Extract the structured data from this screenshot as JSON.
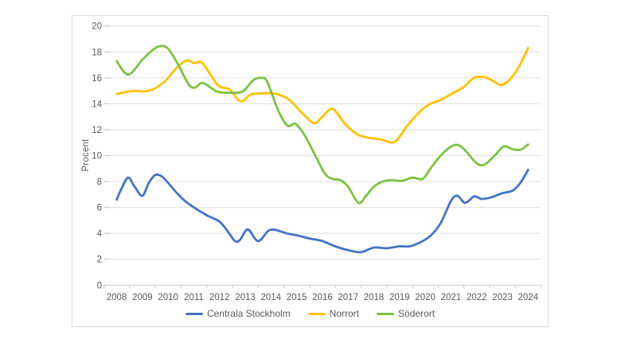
{
  "chart": {
    "ylabel": "Procent",
    "legend": [
      {
        "label": "Centrala Stockholm",
        "color": "#4472c4"
      },
      {
        "label": "Norrort",
        "color": "#ffc000"
      },
      {
        "label": "Söderort",
        "color": "#7cc143"
      }
    ]
  },
  "chart_data": {
    "type": "line",
    "title": "",
    "xlabel": "",
    "ylabel": "Procent",
    "x_tick_labels": [
      "2008",
      "2009",
      "2010",
      "2011",
      "2012",
      "2013",
      "2014",
      "2015",
      "2016",
      "2017",
      "2018",
      "2019",
      "2020",
      "2021",
      "2022",
      "2023",
      "2024"
    ],
    "x_range": [
      2008,
      2024
    ],
    "ylim": [
      0,
      20
    ],
    "y_tick_step": 2,
    "grid": true,
    "legend_position": "bottom",
    "colors": {
      "gridline": "#e3e3e3",
      "axis_line": "#d4d4d4",
      "tick_mark": "#c9c9c9",
      "tick_text": "#595959"
    },
    "series": [
      {
        "name": "Centrala Stockholm",
        "color": "#4472c4",
        "points": [
          [
            2008.0,
            6.6
          ],
          [
            2008.2,
            7.5
          ],
          [
            2008.45,
            8.3
          ],
          [
            2008.7,
            7.6
          ],
          [
            2009.0,
            6.9
          ],
          [
            2009.25,
            7.9
          ],
          [
            2009.5,
            8.5
          ],
          [
            2009.75,
            8.4
          ],
          [
            2010.0,
            7.9
          ],
          [
            2010.3,
            7.2
          ],
          [
            2010.6,
            6.6
          ],
          [
            2011.0,
            6.0
          ],
          [
            2011.5,
            5.4
          ],
          [
            2012.0,
            4.9
          ],
          [
            2012.3,
            4.2
          ],
          [
            2012.6,
            3.4
          ],
          [
            2012.8,
            3.5
          ],
          [
            2013.1,
            4.3
          ],
          [
            2013.5,
            3.4
          ],
          [
            2013.9,
            4.2
          ],
          [
            2014.2,
            4.25
          ],
          [
            2014.6,
            4.0
          ],
          [
            2015.0,
            3.85
          ],
          [
            2015.5,
            3.6
          ],
          [
            2016.0,
            3.4
          ],
          [
            2016.5,
            3.0
          ],
          [
            2017.0,
            2.7
          ],
          [
            2017.5,
            2.55
          ],
          [
            2018.0,
            2.9
          ],
          [
            2018.5,
            2.85
          ],
          [
            2019.0,
            3.0
          ],
          [
            2019.4,
            3.0
          ],
          [
            2019.8,
            3.3
          ],
          [
            2020.2,
            3.8
          ],
          [
            2020.6,
            4.8
          ],
          [
            2021.0,
            6.5
          ],
          [
            2021.25,
            6.9
          ],
          [
            2021.55,
            6.35
          ],
          [
            2021.9,
            6.85
          ],
          [
            2022.2,
            6.65
          ],
          [
            2022.6,
            6.8
          ],
          [
            2023.0,
            7.1
          ],
          [
            2023.4,
            7.3
          ],
          [
            2023.7,
            7.9
          ],
          [
            2024.0,
            8.9
          ]
        ]
      },
      {
        "name": "Norrort",
        "color": "#ffc000",
        "points": [
          [
            2008.0,
            14.75
          ],
          [
            2008.35,
            14.9
          ],
          [
            2008.7,
            15.0
          ],
          [
            2009.0,
            14.95
          ],
          [
            2009.4,
            15.1
          ],
          [
            2009.8,
            15.6
          ],
          [
            2010.0,
            16.0
          ],
          [
            2010.4,
            16.9
          ],
          [
            2010.75,
            17.35
          ],
          [
            2011.0,
            17.15
          ],
          [
            2011.3,
            17.2
          ],
          [
            2011.6,
            16.4
          ],
          [
            2011.9,
            15.5
          ],
          [
            2012.1,
            15.25
          ],
          [
            2012.4,
            15.1
          ],
          [
            2012.7,
            14.35
          ],
          [
            2012.9,
            14.2
          ],
          [
            2013.2,
            14.7
          ],
          [
            2013.6,
            14.8
          ],
          [
            2014.1,
            14.8
          ],
          [
            2014.5,
            14.55
          ],
          [
            2014.8,
            14.15
          ],
          [
            2015.3,
            13.1
          ],
          [
            2015.7,
            12.5
          ],
          [
            2016.0,
            13.0
          ],
          [
            2016.4,
            13.6
          ],
          [
            2016.9,
            12.4
          ],
          [
            2017.4,
            11.6
          ],
          [
            2017.9,
            11.35
          ],
          [
            2018.3,
            11.25
          ],
          [
            2018.8,
            11.05
          ],
          [
            2019.3,
            12.3
          ],
          [
            2019.7,
            13.2
          ],
          [
            2020.1,
            13.9
          ],
          [
            2020.6,
            14.3
          ],
          [
            2021.1,
            14.85
          ],
          [
            2021.5,
            15.3
          ],
          [
            2021.9,
            16.0
          ],
          [
            2022.3,
            16.05
          ],
          [
            2022.6,
            15.8
          ],
          [
            2022.95,
            15.45
          ],
          [
            2023.3,
            15.9
          ],
          [
            2023.65,
            16.9
          ],
          [
            2024.0,
            18.3
          ]
        ]
      },
      {
        "name": "Söderort",
        "color": "#7cc143",
        "points": [
          [
            2008.0,
            17.3
          ],
          [
            2008.45,
            16.25
          ],
          [
            2009.0,
            17.4
          ],
          [
            2009.4,
            18.15
          ],
          [
            2009.7,
            18.45
          ],
          [
            2010.0,
            18.25
          ],
          [
            2010.4,
            17.0
          ],
          [
            2010.8,
            15.5
          ],
          [
            2011.05,
            15.25
          ],
          [
            2011.35,
            15.6
          ],
          [
            2011.9,
            14.95
          ],
          [
            2012.4,
            14.85
          ],
          [
            2012.9,
            14.95
          ],
          [
            2013.3,
            15.8
          ],
          [
            2013.6,
            16.0
          ],
          [
            2013.85,
            15.7
          ],
          [
            2014.3,
            13.4
          ],
          [
            2014.65,
            12.3
          ],
          [
            2014.95,
            12.45
          ],
          [
            2015.3,
            11.6
          ],
          [
            2015.7,
            10.1
          ],
          [
            2016.1,
            8.6
          ],
          [
            2016.4,
            8.2
          ],
          [
            2016.7,
            8.1
          ],
          [
            2017.0,
            7.6
          ],
          [
            2017.4,
            6.35
          ],
          [
            2017.7,
            6.9
          ],
          [
            2018.0,
            7.6
          ],
          [
            2018.35,
            8.0
          ],
          [
            2018.7,
            8.1
          ],
          [
            2019.1,
            8.05
          ],
          [
            2019.5,
            8.3
          ],
          [
            2019.9,
            8.2
          ],
          [
            2020.2,
            9.0
          ],
          [
            2020.6,
            10.0
          ],
          [
            2021.0,
            10.7
          ],
          [
            2021.3,
            10.8
          ],
          [
            2021.6,
            10.3
          ],
          [
            2022.0,
            9.4
          ],
          [
            2022.3,
            9.3
          ],
          [
            2022.7,
            10.0
          ],
          [
            2023.05,
            10.7
          ],
          [
            2023.4,
            10.5
          ],
          [
            2023.7,
            10.45
          ],
          [
            2024.0,
            10.85
          ]
        ]
      }
    ]
  }
}
